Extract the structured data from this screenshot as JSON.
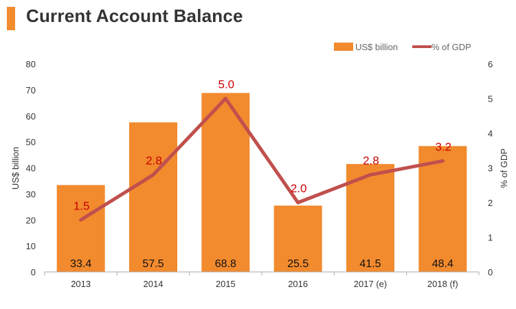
{
  "title": "Current Account Balance",
  "colors": {
    "accent": "#f28a2e",
    "bar": "#f28a2e",
    "line": "#c0504d",
    "line_label": "#cc0000"
  },
  "chart_data": {
    "type": "bar",
    "categories": [
      "2013",
      "2014",
      "2015",
      "2016",
      "2017 (e)",
      "2018 (f)"
    ],
    "series": [
      {
        "name": "US$ billion",
        "type": "bar",
        "axis": "left",
        "values": [
          33.4,
          57.5,
          68.8,
          25.5,
          41.5,
          48.4
        ]
      },
      {
        "name": "% of GDP",
        "type": "line",
        "axis": "right",
        "values": [
          1.5,
          2.8,
          5.0,
          2.0,
          2.8,
          3.2
        ]
      }
    ],
    "ylabel": "US$ billion",
    "ylabel_right": "% of GDP",
    "ylim": [
      0,
      80
    ],
    "ylim_right": [
      0,
      6
    ],
    "yticks": [
      "0",
      "10",
      "20",
      "30",
      "40",
      "50",
      "60",
      "70",
      "80"
    ],
    "yticks_right": [
      "0",
      "1",
      "2",
      "3",
      "4",
      "5",
      "6"
    ],
    "bar_labels": [
      "33.4",
      "57.5",
      "68.8",
      "25.5",
      "41.5",
      "48.4"
    ],
    "line_labels": [
      "1.5",
      "2.8",
      "5.0",
      "2.0",
      "2.8",
      "3.2"
    ],
    "legend": [
      "US$ billion",
      "% of GDP"
    ],
    "legend_position": "top-right",
    "grid": false
  }
}
